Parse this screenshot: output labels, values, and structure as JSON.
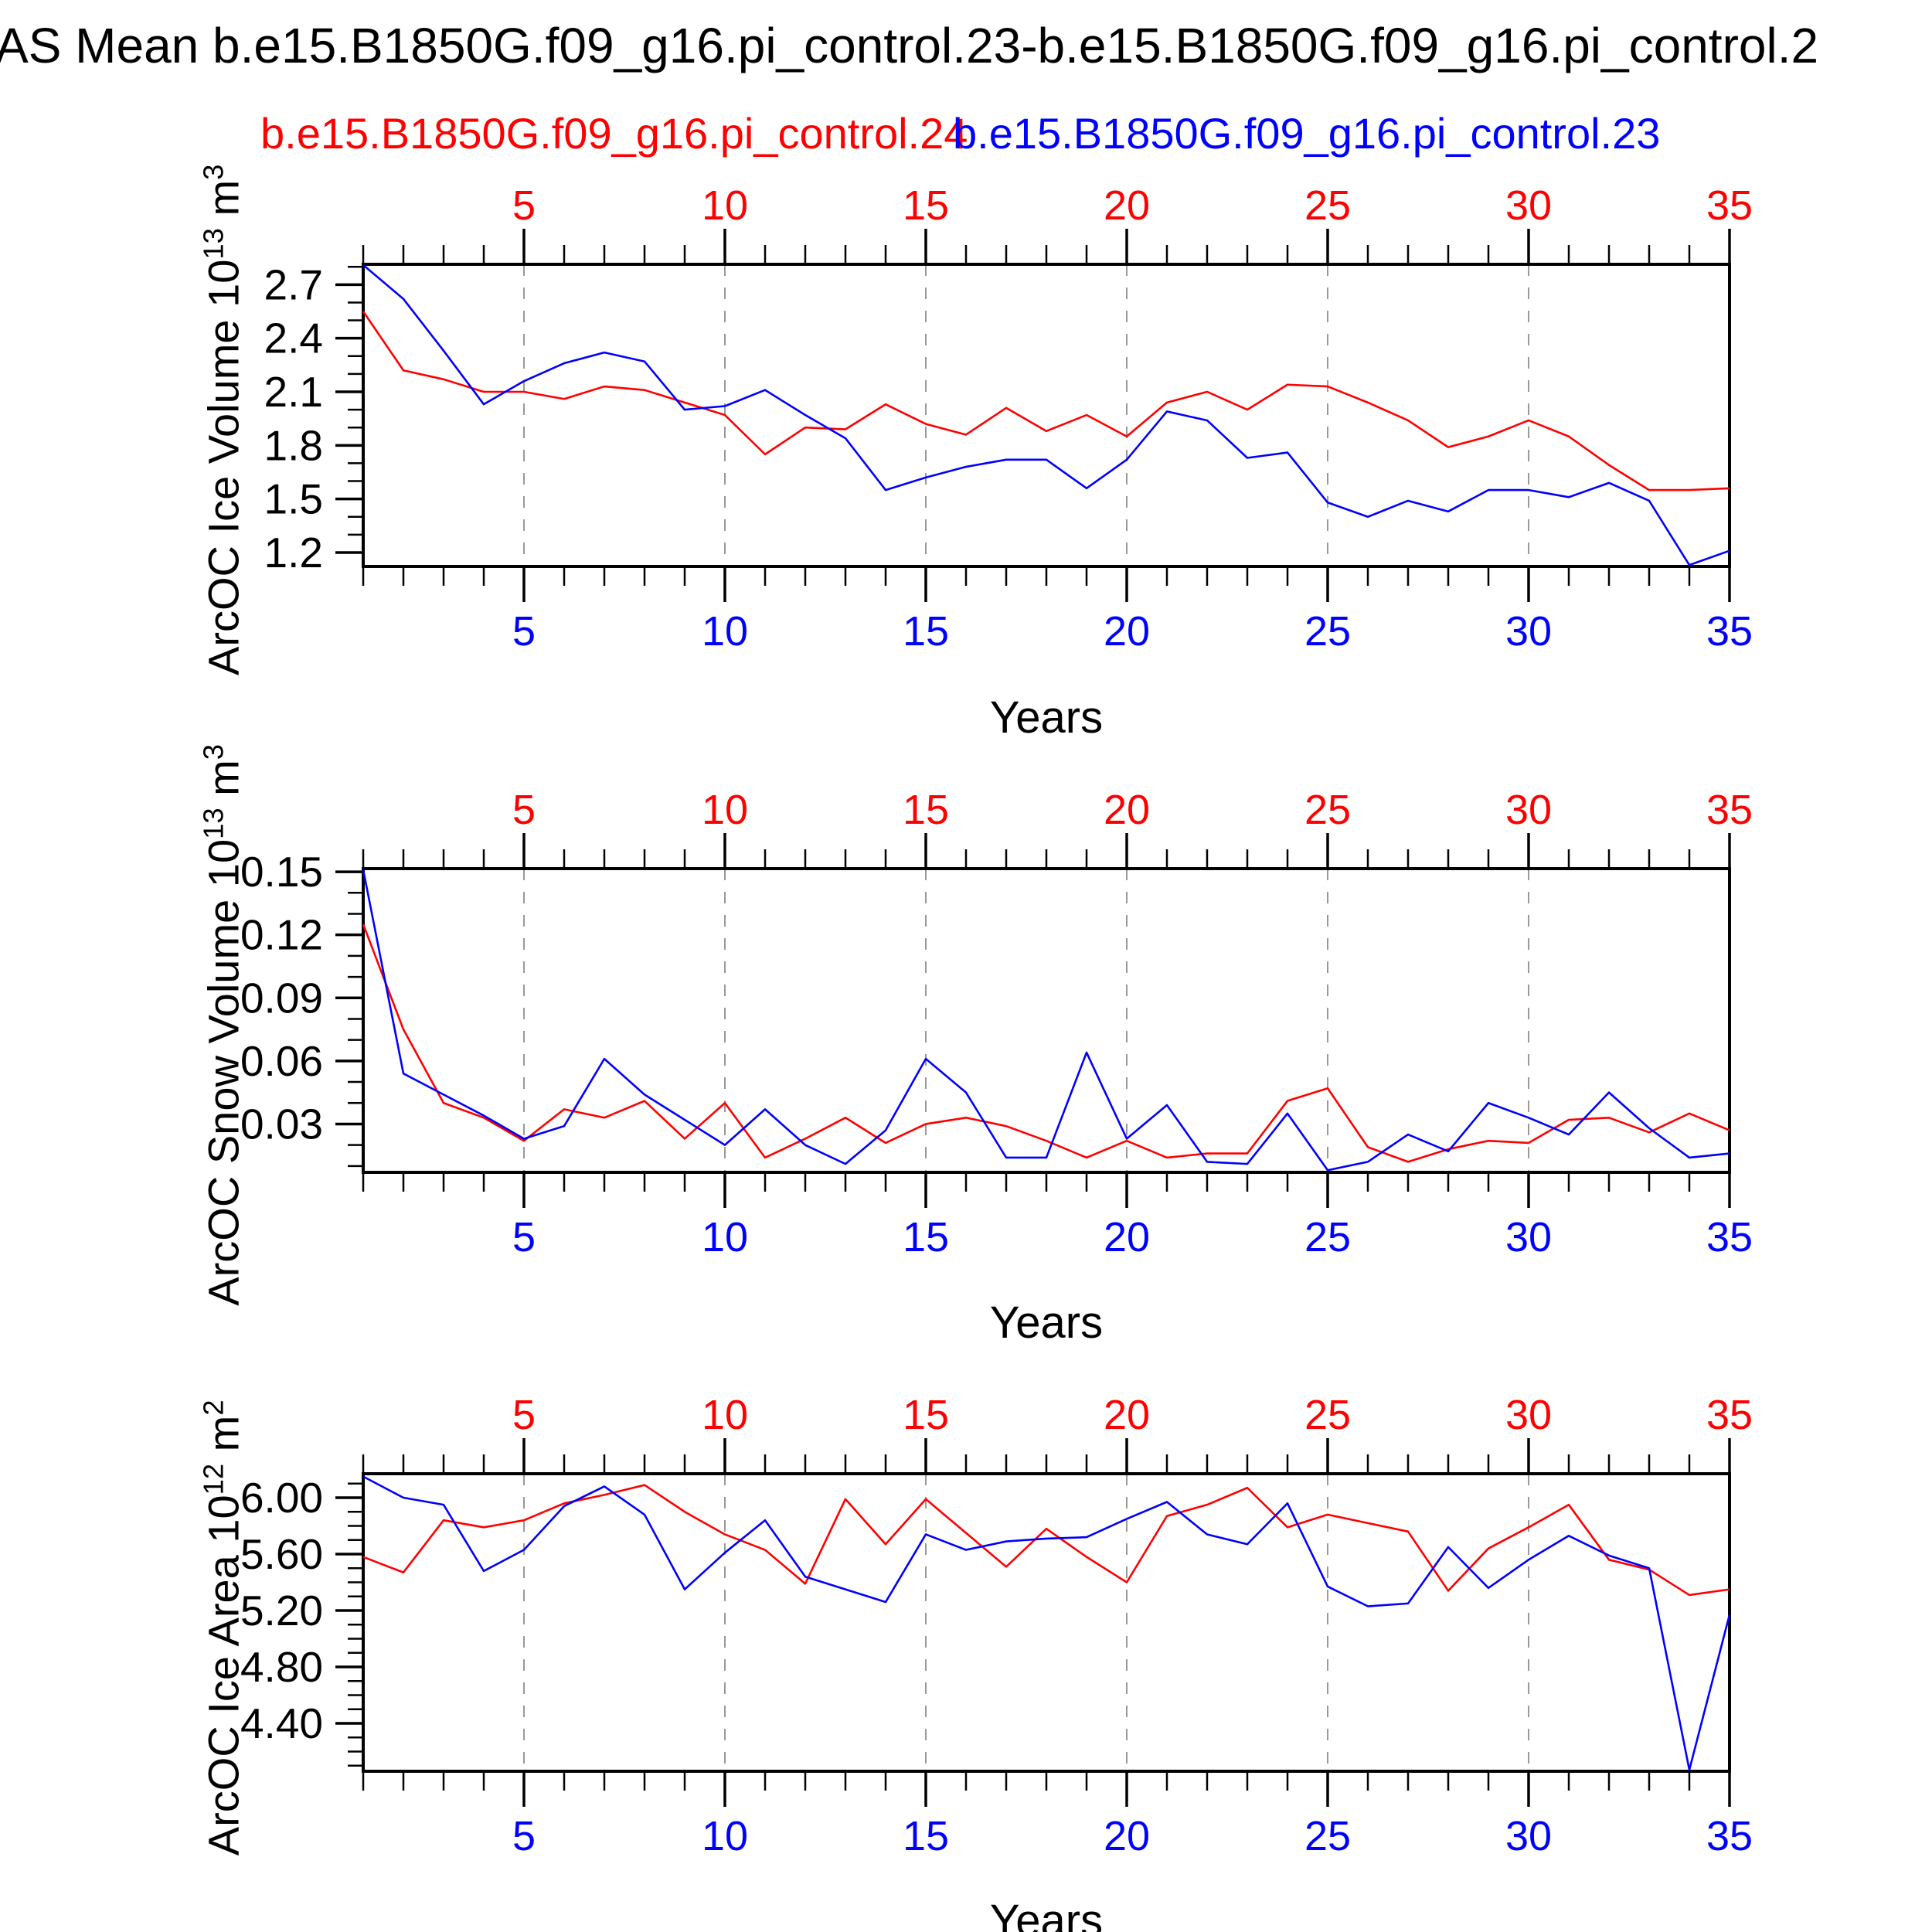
{
  "title": "AS Mean b.e15.B1850G.f09_g16.pi_control.23-b.e15.B1850G.f09_g16.pi_control.2",
  "legend": {
    "red_label": "b.e15.B1850G.f09_g16.pi_control.24",
    "blue_label": "b.e15.B1850G.f09_g16.pi_control.23"
  },
  "colors": {
    "red": "#ff0000",
    "blue": "#0000ff",
    "grid": "#999999",
    "frame": "#000000"
  },
  "years": [
    1,
    2,
    3,
    4,
    5,
    6,
    7,
    8,
    9,
    10,
    11,
    12,
    13,
    14,
    15,
    16,
    17,
    18,
    19,
    20,
    21,
    22,
    23,
    24,
    25,
    26,
    27,
    28,
    29,
    30,
    31,
    32,
    33,
    34,
    35
  ],
  "chart_data": [
    {
      "type": "line",
      "ylabel": {
        "base": "ArcOC Ice Volume 10",
        "exp": "13",
        "unit": " m",
        "unit_exp": "3"
      },
      "xlabel": "Years",
      "xlim": [
        1,
        35
      ],
      "ylim": [
        1.122,
        2.814
      ],
      "x_ticks": [
        5,
        10,
        15,
        20,
        25,
        30,
        35
      ],
      "x_minor_step": 1,
      "grid_years": [
        5,
        10,
        15,
        20,
        25,
        30
      ],
      "y_tick_values": [
        2.7,
        2.4,
        2.1,
        1.8,
        1.5,
        1.2
      ],
      "y_tick_labels": [
        "2.7",
        "2.4",
        "2.1",
        "1.8",
        "1.5",
        "1.2"
      ],
      "y_minor_step": 0.1,
      "legend_position": "top-overlapping-subtitles",
      "grid": "vertical-dashed",
      "series": [
        {
          "name": "b.e15.B1850G.f09_g16.pi_control.24",
          "color": "#ff0000",
          "values": [
            2.55,
            2.22,
            2.17,
            2.1,
            2.1,
            2.06,
            2.13,
            2.11,
            2.04,
            1.97,
            1.75,
            1.9,
            1.89,
            2.03,
            1.92,
            1.86,
            2.01,
            1.88,
            1.97,
            1.85,
            2.04,
            2.1,
            2.0,
            2.14,
            2.13,
            2.04,
            1.94,
            1.79,
            1.85,
            1.94,
            1.85,
            1.69,
            1.55,
            1.55,
            1.56
          ]
        },
        {
          "name": "b.e15.B1850G.f09_g16.pi_control.23",
          "color": "#0000ff",
          "values": [
            2.81,
            2.62,
            2.33,
            2.03,
            2.16,
            2.26,
            2.32,
            2.27,
            2.0,
            2.02,
            2.11,
            1.97,
            1.84,
            1.55,
            1.62,
            1.68,
            1.72,
            1.72,
            1.56,
            1.72,
            1.99,
            1.94,
            1.73,
            1.76,
            1.48,
            1.4,
            1.49,
            1.43,
            1.55,
            1.55,
            1.51,
            1.59,
            1.49,
            1.13,
            1.21
          ]
        }
      ]
    },
    {
      "type": "line",
      "ylabel": {
        "base": "ArcOC Snow Volume 10",
        "exp": "13",
        "unit": " m",
        "unit_exp": "3"
      },
      "xlabel": "Years",
      "xlim": [
        1,
        35
      ],
      "ylim": [
        0.007,
        0.1515
      ],
      "x_ticks": [
        5,
        10,
        15,
        20,
        25,
        30,
        35
      ],
      "x_minor_step": 1,
      "grid_years": [
        5,
        10,
        15,
        20,
        25,
        30
      ],
      "y_tick_values": [
        0.15,
        0.12,
        0.09,
        0.06,
        0.03
      ],
      "y_tick_labels": [
        "0.15",
        "0.12",
        "0.09",
        "0.06",
        "0.03"
      ],
      "y_minor_step": 0.01,
      "grid": "vertical-dashed",
      "series": [
        {
          "name": "b.e15.B1850G.f09_g16.pi_control.24",
          "color": "#ff0000",
          "values": [
            0.125,
            0.075,
            0.04,
            0.033,
            0.022,
            0.037,
            0.033,
            0.041,
            0.023,
            0.04,
            0.014,
            0.023,
            0.033,
            0.021,
            0.03,
            0.033,
            0.029,
            0.022,
            0.014,
            0.022,
            0.014,
            0.016,
            0.016,
            0.041,
            0.047,
            0.019,
            0.012,
            0.018,
            0.022,
            0.021,
            0.032,
            0.033,
            0.026,
            0.035,
            0.027
          ]
        },
        {
          "name": "b.e15.B1850G.f09_g16.pi_control.23",
          "color": "#0000ff",
          "values": [
            0.151,
            0.054,
            0.044,
            0.034,
            0.023,
            0.029,
            0.061,
            0.044,
            0.032,
            0.02,
            0.037,
            0.02,
            0.011,
            0.027,
            0.061,
            0.045,
            0.014,
            0.014,
            0.064,
            0.023,
            0.039,
            0.012,
            0.011,
            0.035,
            0.008,
            0.012,
            0.025,
            0.017,
            0.04,
            0.033,
            0.025,
            0.045,
            0.028,
            0.014,
            0.016
          ]
        }
      ]
    },
    {
      "type": "line",
      "ylabel": {
        "base": "ArcOC Ice Area 10",
        "exp": "12",
        "unit": " m",
        "unit_exp": "2"
      },
      "xlabel": "Years",
      "xlim": [
        1,
        35
      ],
      "ylim": [
        4.06,
        6.17
      ],
      "x_ticks": [
        5,
        10,
        15,
        20,
        25,
        30,
        35
      ],
      "x_minor_step": 1,
      "grid_years": [
        5,
        10,
        15,
        20,
        25,
        30
      ],
      "y_tick_values": [
        6.0,
        5.6,
        5.2,
        4.8,
        4.4
      ],
      "y_tick_labels": [
        "6.00",
        "5.60",
        "5.20",
        "4.80",
        "4.40"
      ],
      "y_minor_step": 0.1,
      "grid": "vertical-dashed",
      "series": [
        {
          "name": "b.e15.B1850G.f09_g16.pi_control.24",
          "color": "#ff0000",
          "values": [
            5.58,
            5.47,
            5.84,
            5.79,
            5.84,
            5.96,
            6.02,
            6.09,
            5.9,
            5.74,
            5.63,
            5.39,
            5.99,
            5.67,
            5.99,
            5.75,
            5.51,
            5.78,
            5.58,
            5.4,
            5.87,
            5.95,
            6.07,
            5.79,
            5.88,
            5.82,
            5.76,
            5.34,
            5.64,
            5.79,
            5.95,
            5.56,
            5.49,
            5.31,
            5.35
          ]
        },
        {
          "name": "b.e15.B1850G.f09_g16.pi_control.23",
          "color": "#0000ff",
          "values": [
            6.15,
            6.0,
            5.95,
            5.48,
            5.63,
            5.94,
            6.08,
            5.88,
            5.35,
            5.61,
            5.84,
            5.44,
            5.35,
            5.26,
            5.74,
            5.63,
            5.69,
            5.71,
            5.72,
            5.85,
            5.97,
            5.74,
            5.67,
            5.96,
            5.37,
            5.23,
            5.25,
            5.65,
            5.36,
            5.56,
            5.73,
            5.59,
            5.5,
            4.07,
            5.17
          ]
        }
      ]
    }
  ]
}
